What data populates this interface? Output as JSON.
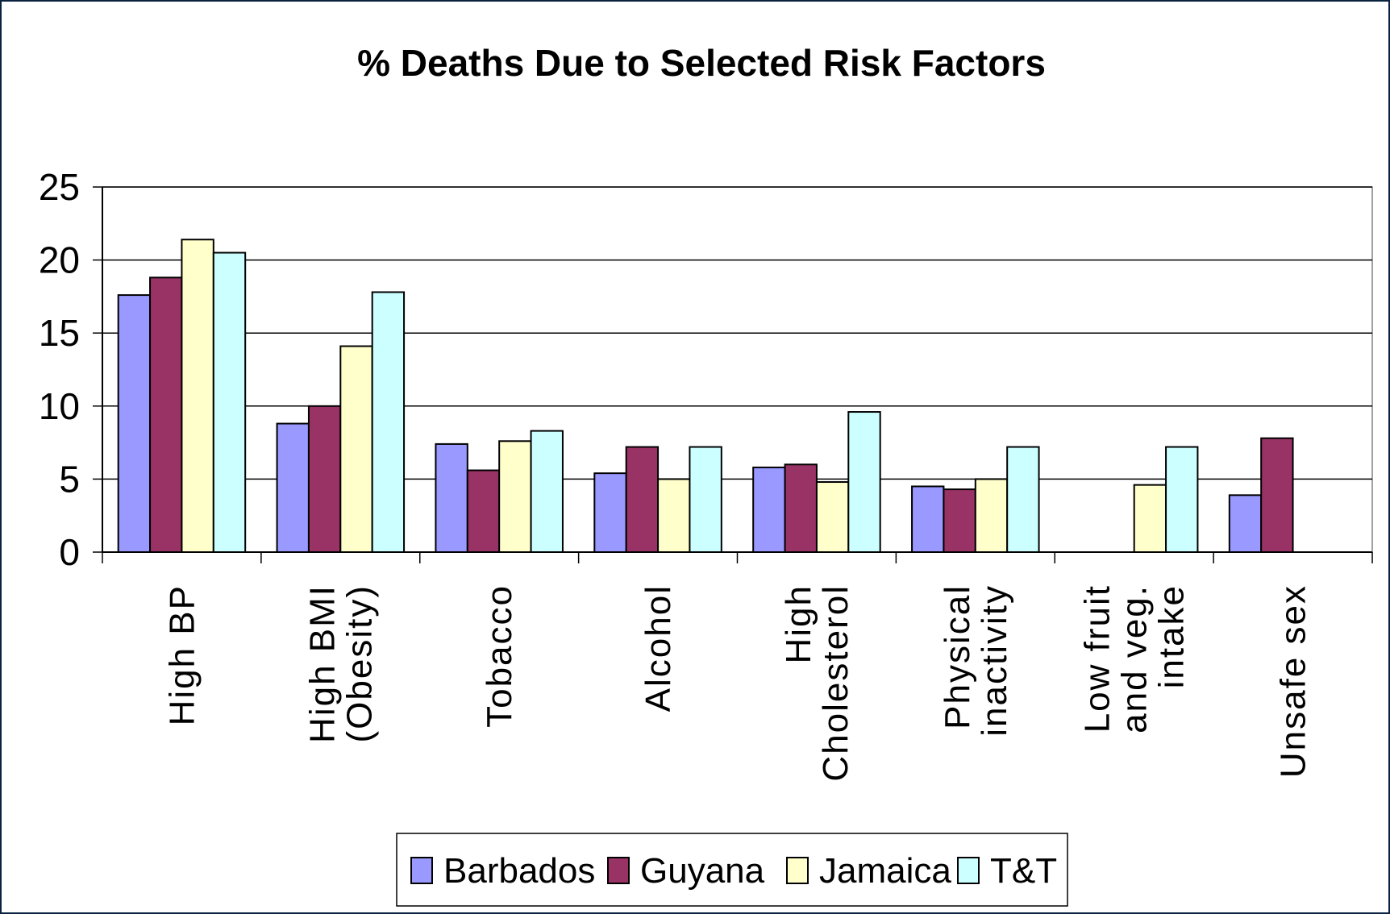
{
  "chart_data": {
    "type": "bar",
    "title": "% Deaths Due to Selected Risk Factors",
    "xlabel": "",
    "ylabel": "",
    "ylim": [
      0,
      25
    ],
    "yticks": [
      0,
      5,
      10,
      15,
      20,
      25
    ],
    "grid": true,
    "legend_position": "bottom",
    "categories": [
      [
        "High BP"
      ],
      [
        "High BMI",
        "(Obesity)"
      ],
      [
        "Tobacco"
      ],
      [
        "Alcohol"
      ],
      [
        "High",
        "Cholesterol"
      ],
      [
        "Physical",
        "inactivity"
      ],
      [
        "Low fruit",
        "and veg.",
        "intake"
      ],
      [
        "Unsafe sex"
      ]
    ],
    "series": [
      {
        "name": "Barbados",
        "color": "#9999ff",
        "values": [
          17.6,
          8.8,
          7.4,
          5.4,
          5.8,
          4.5,
          null,
          3.9
        ]
      },
      {
        "name": "Guyana",
        "color": "#993366",
        "values": [
          18.8,
          10.0,
          5.6,
          7.2,
          6.0,
          4.3,
          null,
          7.8
        ]
      },
      {
        "name": "Jamaica",
        "color": "#ffffcc",
        "values": [
          21.4,
          14.1,
          7.6,
          5.0,
          4.8,
          5.0,
          4.6,
          null
        ]
      },
      {
        "name": "T&T",
        "color": "#ccffff",
        "values": [
          20.5,
          17.8,
          8.3,
          7.2,
          9.6,
          7.2,
          7.2,
          null
        ]
      }
    ]
  }
}
